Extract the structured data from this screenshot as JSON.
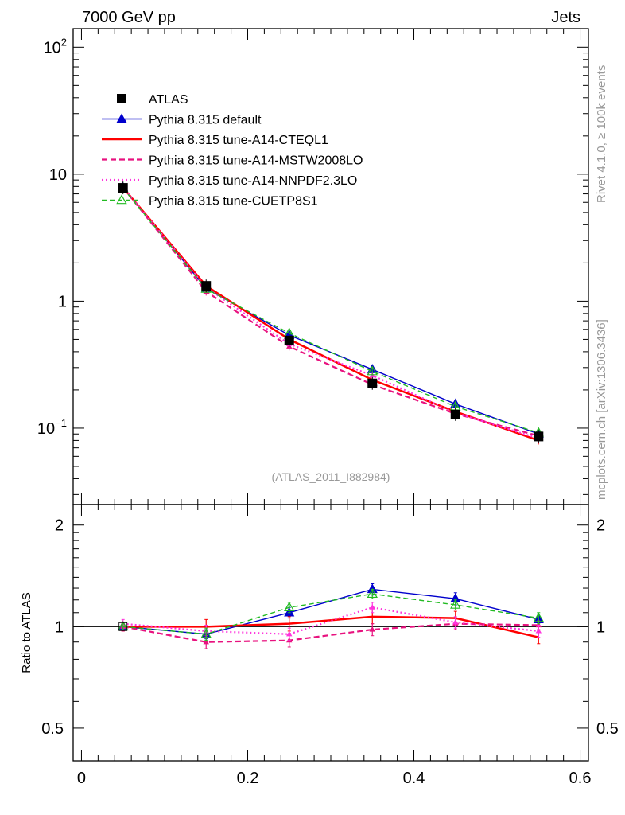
{
  "header": {
    "left": "7000 GeV pp",
    "right": "Jets"
  },
  "side_labels": {
    "rivet": "Rivet 4.1.0, ≥ 100k events",
    "mcplots": "mcplots.cern.ch [arXiv:1306.3436]"
  },
  "analysis_ref": "(ATLAS_2011_I882984)",
  "ratio_ylabel": "Ratio to ATLAS",
  "chart_data": [
    {
      "type": "line",
      "panel": "main",
      "yscale": "log",
      "xlim": [
        -0.01,
        0.61
      ],
      "ylim": [
        0.025,
        140
      ],
      "x": [
        0.05,
        0.15,
        0.25,
        0.35,
        0.45,
        0.55
      ],
      "y_ticks": [
        {
          "value": 100,
          "base": "10",
          "exp": "2"
        },
        {
          "value": 10,
          "base": "10",
          "exp": ""
        },
        {
          "value": 1,
          "base": "1",
          "exp": ""
        },
        {
          "value": 0.1,
          "base": "10",
          "exp": "−1"
        }
      ],
      "x_ticks": [
        {
          "value": 0,
          "label": "0"
        },
        {
          "value": 0.2,
          "label": "0.2"
        },
        {
          "value": 0.4,
          "label": "0.4"
        },
        {
          "value": 0.6,
          "label": "0.6"
        }
      ],
      "data": {
        "name": "ATLAS",
        "values": [
          7.8,
          1.32,
          0.49,
          0.225,
          0.128,
          0.086
        ]
      },
      "series": [
        {
          "name": "Pythia 8.315 default",
          "color": "#0000cc",
          "dash": "",
          "marker": "tri-filled",
          "values": [
            7.85,
            1.26,
            0.54,
            0.29,
            0.155,
            0.09
          ]
        },
        {
          "name": "Pythia 8.315 tune-A14-CTEQL1",
          "color": "#ff0000",
          "dash": "",
          "marker": "none",
          "width": 2.5,
          "values": [
            7.85,
            1.32,
            0.5,
            0.24,
            0.135,
            0.08
          ]
        },
        {
          "name": "Pythia 8.315 tune-A14-MSTW2008LO",
          "color": "#e8127f",
          "dash": "7,4",
          "marker": "small",
          "width": 2.2,
          "values": [
            7.85,
            1.19,
            0.44,
            0.22,
            0.13,
            0.087
          ]
        },
        {
          "name": "Pythia 8.315 tune-A14-NNPDF2.3LO",
          "color": "#ff33dd",
          "dash": "2,3",
          "marker": "small",
          "width": 2.2,
          "values": [
            7.85,
            1.28,
            0.46,
            0.26,
            0.132,
            0.083
          ]
        },
        {
          "name": "Pythia 8.315 tune-CUETP8S1",
          "color": "#22bb22",
          "dash": "6,4",
          "marker": "tri-open",
          "values": [
            7.75,
            1.25,
            0.56,
            0.28,
            0.148,
            0.092
          ]
        }
      ]
    },
    {
      "type": "line",
      "panel": "ratio",
      "ylabel": "Ratio to ATLAS",
      "yscale": "log",
      "xlim": [
        -0.01,
        0.61
      ],
      "ylim": [
        0.4,
        2.3
      ],
      "x": [
        0.05,
        0.15,
        0.25,
        0.35,
        0.45,
        0.55
      ],
      "y_ticks": [
        {
          "value": 2,
          "label": "2"
        },
        {
          "value": 1,
          "label": "1"
        },
        {
          "value": 0.5,
          "label": "0.5"
        }
      ],
      "series": [
        {
          "name": "Pythia 8.315 default",
          "values": [
            1.0,
            0.95,
            1.1,
            1.29,
            1.21,
            1.05
          ],
          "errors": [
            0.02,
            0.03,
            0.04,
            0.05,
            0.05,
            0.04
          ]
        },
        {
          "name": "Pythia 8.315 tune-A14-CTEQL1",
          "values": [
            1.0,
            1.0,
            1.02,
            1.07,
            1.06,
            0.93
          ],
          "errors": [
            0.03,
            0.05,
            0.05,
            0.05,
            0.05,
            0.04
          ]
        },
        {
          "name": "Pythia 8.315 tune-A14-MSTW2008LO",
          "values": [
            1.0,
            0.9,
            0.91,
            0.98,
            1.02,
            1.01
          ],
          "errors": [
            0.03,
            0.04,
            0.04,
            0.04,
            0.04,
            0.03
          ]
        },
        {
          "name": "Pythia 8.315 tune-A14-NNPDF2.3LO",
          "values": [
            1.02,
            0.97,
            0.95,
            1.14,
            1.03,
            0.97
          ],
          "errors": [
            0.03,
            0.04,
            0.04,
            0.04,
            0.04,
            0.04
          ]
        },
        {
          "name": "Pythia 8.315 tune-CUETP8S1",
          "values": [
            1.0,
            0.95,
            1.14,
            1.25,
            1.16,
            1.06
          ],
          "errors": [
            0.02,
            0.04,
            0.04,
            0.04,
            0.04,
            0.04
          ]
        }
      ]
    }
  ]
}
